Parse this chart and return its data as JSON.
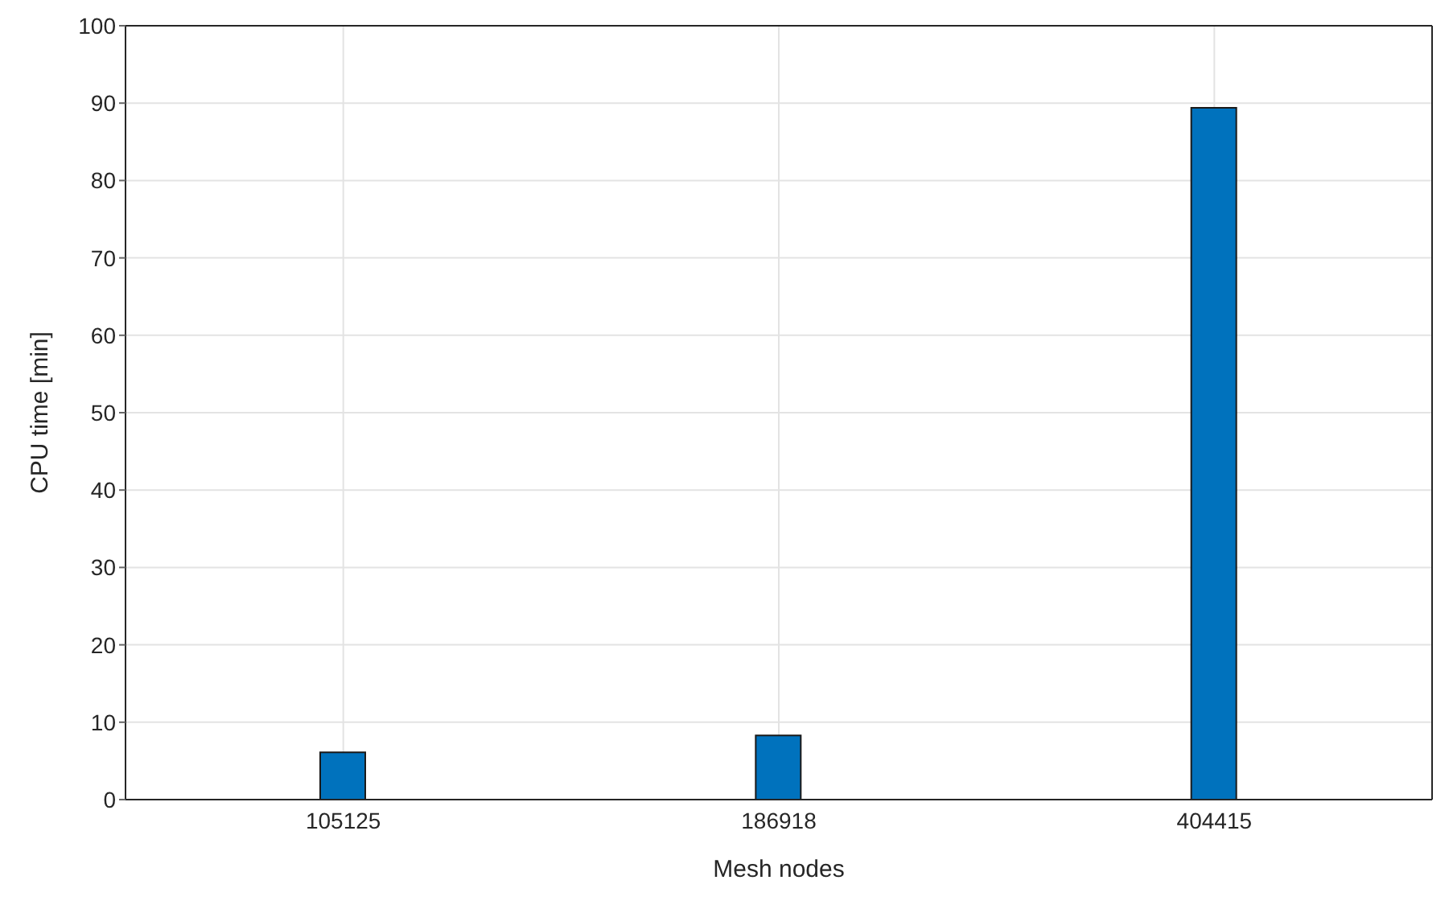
{
  "chart_data": {
    "type": "bar",
    "xlabel": "Mesh nodes",
    "ylabel": "CPU time [min]",
    "categories": [
      "105125",
      "186918",
      "404415"
    ],
    "values": [
      6.1,
      8.3,
      89.4
    ],
    "color": "#0072bd",
    "ylim": [
      0,
      100
    ],
    "yticks": [
      0,
      10,
      20,
      30,
      40,
      50,
      60,
      70,
      80,
      90,
      100
    ],
    "grid": true
  }
}
